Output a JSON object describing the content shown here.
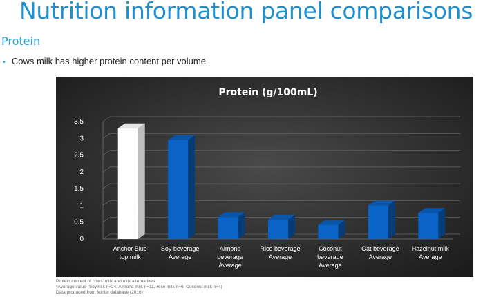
{
  "slide": {
    "title": "Nutrition information panel comparisons",
    "section": "Protein",
    "bullet": "Cows milk has higher protein content per volume"
  },
  "chart_data": {
    "type": "bar",
    "title": "Protein (g/100mL)",
    "categories": [
      [
        "Anchor Blue",
        "top milk"
      ],
      [
        "Soy beverage",
        "Average"
      ],
      [
        "Almond",
        "beverage",
        "Average"
      ],
      [
        "Rice beverage",
        "Average"
      ],
      [
        "Coconut",
        "beverage",
        "Average"
      ],
      [
        "Oat beverage",
        "Average"
      ],
      [
        "Hazelnut milk",
        "Average"
      ]
    ],
    "values": [
      3.3,
      2.95,
      0.65,
      0.58,
      0.42,
      1.0,
      0.78
    ],
    "bar_colors": [
      "#ffffff",
      "#0a64c8",
      "#0a64c8",
      "#0a64c8",
      "#0a64c8",
      "#0a64c8",
      "#0a64c8"
    ],
    "ylim": [
      0,
      3.5
    ],
    "yticks": [
      "0",
      "0.5",
      "1",
      "1.5",
      "2",
      "2.5",
      "3",
      "3.5"
    ],
    "xlabel": "",
    "ylabel": "",
    "grid": true,
    "background": "#3d3d3d",
    "text_color": "#ffffff"
  },
  "footnotes": [
    "Protein content of cows' milk and milk alternatives",
    "*Average value (Soymilk n=24, Almond milk n=11, Rice milk n=6, Coconut milk n=4)",
    "Data produced from Mintel database (2016)"
  ]
}
